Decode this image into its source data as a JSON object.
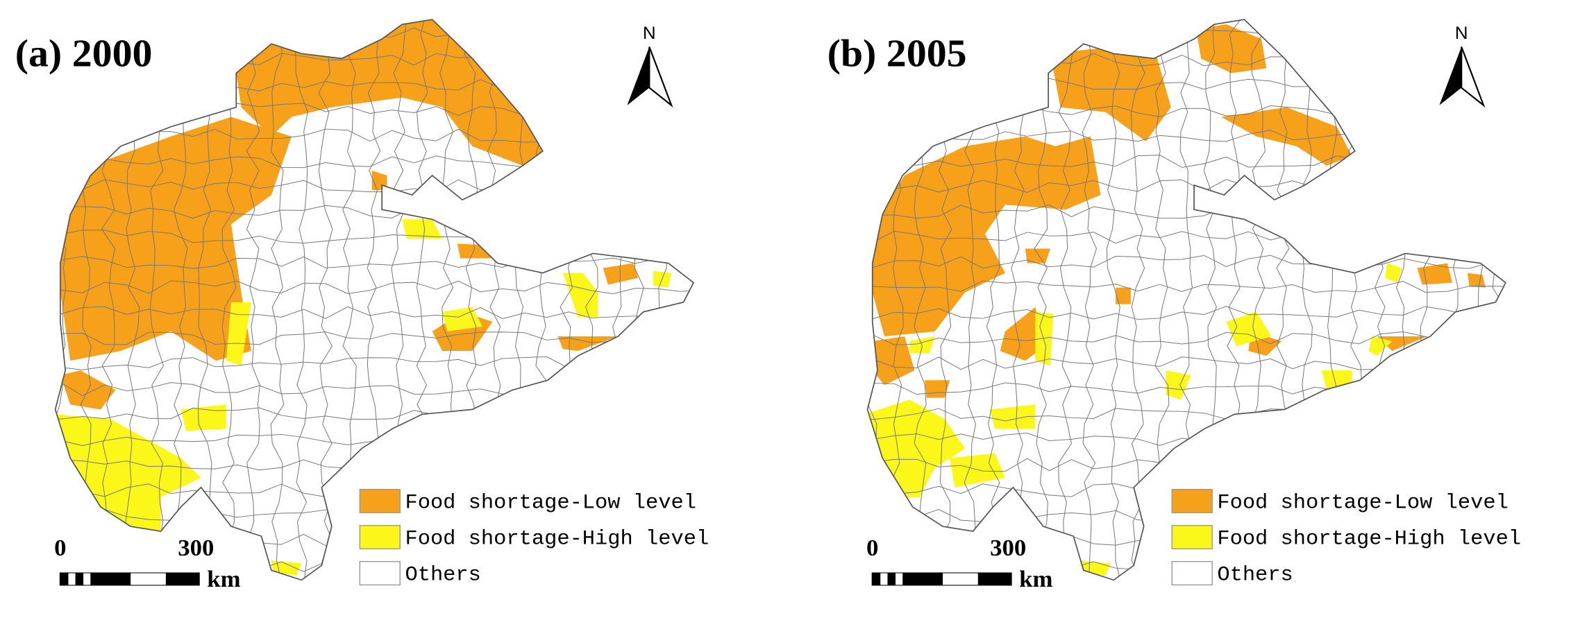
{
  "panels": [
    {
      "title": "(a) 2000",
      "north": "N",
      "scale": {
        "start": "0",
        "end": "300",
        "unit": "km"
      },
      "legend": [
        {
          "label": "Food shortage-Low level",
          "color": "#f7a11a"
        },
        {
          "label": "Food shortage-High level",
          "color": "#fbf719"
        },
        {
          "label": "Others",
          "color": "#ffffff"
        }
      ]
    },
    {
      "title": "(b) 2005",
      "north": "N",
      "scale": {
        "start": "0",
        "end": "300",
        "unit": "km"
      },
      "legend": [
        {
          "label": "Food shortage-Low level",
          "color": "#f7a11a"
        },
        {
          "label": "Food shortage-High level",
          "color": "#fbf719"
        },
        {
          "label": "Others",
          "color": "#ffffff"
        }
      ]
    }
  ]
}
